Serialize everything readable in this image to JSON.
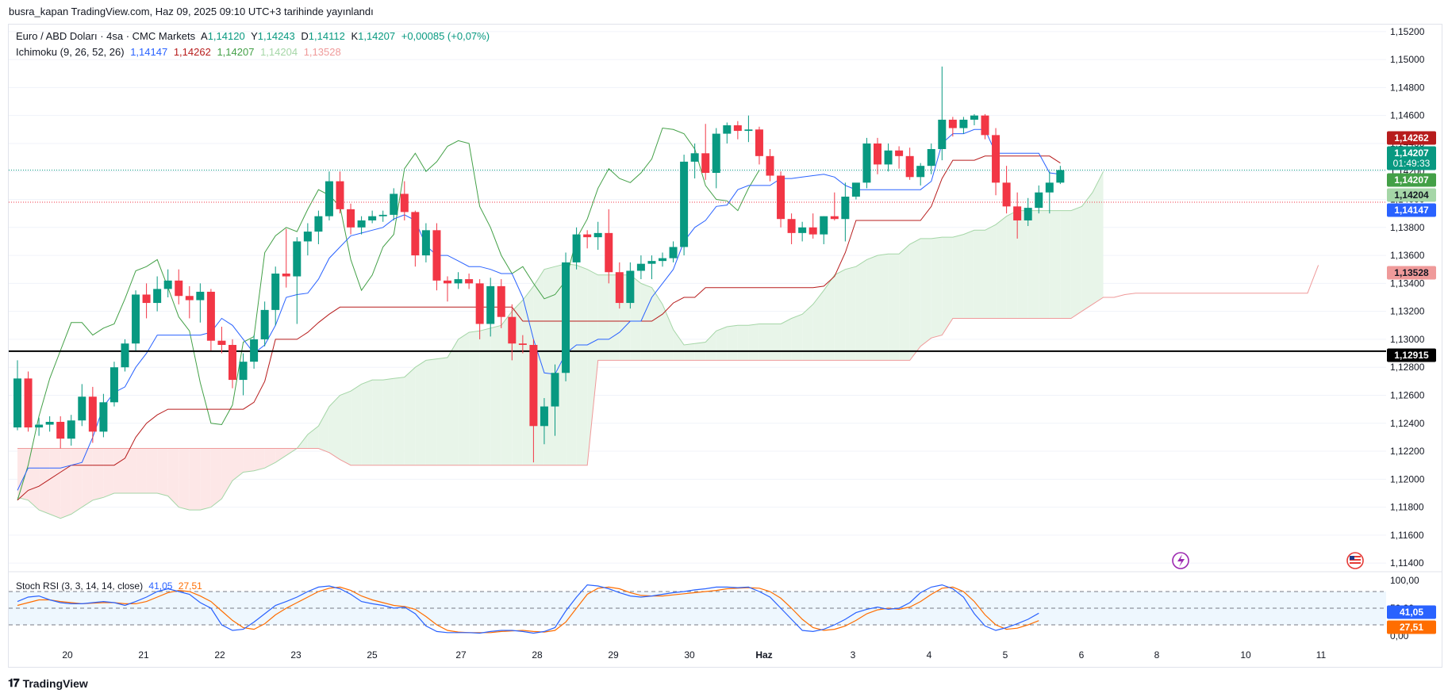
{
  "header": {
    "publish_line": "busra_kapan TradingView.com, Haz 09, 2025 09:10 UTC+3 tarihinde yayınlandı"
  },
  "legend": {
    "symbol": "Euro / ABD Doları · 4sa · CMC Markets",
    "open_label": "A",
    "open": "1,14120",
    "high_label": "Y",
    "high": "1,14243",
    "low_label": "D",
    "low": "1,14112",
    "close_label": "K",
    "close": "1,14207",
    "change": "+0,00085 (+0,07%)",
    "ichimoku_label": "Ichimoku (9, 26, 52, 26)",
    "ichimoku_values": [
      "1,14147",
      "1,14262",
      "1,14207",
      "1,14204",
      "1,13528"
    ],
    "stoch_label": "Stoch RSI (3, 3, 14, 14, close)",
    "stoch_k": "41,05",
    "stoch_d": "27,51"
  },
  "footer": {
    "brand": "TradingView"
  },
  "colors": {
    "up": "#089981",
    "down": "#f23645",
    "conversion": "#2962ff",
    "base": "#b71c1c",
    "lagging": "#43a047",
    "spanA": "#a5d6a7",
    "spanB": "#ef9a9a",
    "kumoBull": "#e8f5e9",
    "kumoBear": "#fde7e7",
    "stochK": "#2962ff",
    "stochD": "#ff6d00"
  },
  "chart_data": {
    "type": "candlestick",
    "symbol": "EUR/USD",
    "timeframe": "4sa",
    "y_range": [
      1.1135,
      1.1525
    ],
    "y_ticks": [
      "1,15200",
      "1,15000",
      "1,14800",
      "1,14600",
      "1,14400",
      "1,14200",
      "1,14000",
      "1,13800",
      "1,13600",
      "1,13400",
      "1,13200",
      "1,13000",
      "1,12800",
      "1,12600",
      "1,12400",
      "1,12200",
      "1,12000",
      "1,11800",
      "1,11600",
      "1,11400"
    ],
    "x_ticks": [
      "20",
      "21",
      "22",
      "23",
      "25",
      "27",
      "28",
      "29",
      "30",
      "Haz",
      "3",
      "4",
      "5",
      "6",
      "8",
      "10",
      "11"
    ],
    "horizontal_line": 1.12915,
    "price_labels": [
      {
        "text": "1,14262",
        "kind": "base"
      },
      {
        "text": "1,14207",
        "sub": "01:49:33",
        "kind": "last"
      },
      {
        "text": "1,14207",
        "kind": "lagging"
      },
      {
        "text": "1,14204",
        "kind": "spanA"
      },
      {
        "text": "1,14147",
        "kind": "conversion"
      },
      {
        "text": "1,13528",
        "kind": "spanB"
      },
      {
        "text": "1,12915",
        "kind": "hline"
      }
    ],
    "candles": [
      [
        1.1237,
        1.1285,
        1.1235,
        1.1272
      ],
      [
        1.1272,
        1.1277,
        1.1234,
        1.1237
      ],
      [
        1.1237,
        1.1244,
        1.1231,
        1.1239
      ],
      [
        1.1239,
        1.1245,
        1.1234,
        1.1241
      ],
      [
        1.1241,
        1.1245,
        1.1222,
        1.1229
      ],
      [
        1.1229,
        1.1246,
        1.1224,
        1.1242
      ],
      [
        1.1242,
        1.1268,
        1.1238,
        1.1259
      ],
      [
        1.1259,
        1.1266,
        1.1226,
        1.1234
      ],
      [
        1.1234,
        1.1261,
        1.123,
        1.1255
      ],
      [
        1.1255,
        1.1284,
        1.1252,
        1.128
      ],
      [
        1.128,
        1.13,
        1.1277,
        1.1297
      ],
      [
        1.1297,
        1.1335,
        1.1292,
        1.1332
      ],
      [
        1.1332,
        1.134,
        1.1315,
        1.1326
      ],
      [
        1.1326,
        1.1345,
        1.132,
        1.1336
      ],
      [
        1.1336,
        1.135,
        1.133,
        1.1342
      ],
      [
        1.1342,
        1.135,
        1.1325,
        1.1331
      ],
      [
        1.1331,
        1.1338,
        1.1315,
        1.1328
      ],
      [
        1.1328,
        1.134,
        1.1312,
        1.1334
      ],
      [
        1.1334,
        1.1336,
        1.1292,
        1.1299
      ],
      [
        1.1299,
        1.1309,
        1.129,
        1.1296
      ],
      [
        1.1296,
        1.13,
        1.1265,
        1.1271
      ],
      [
        1.1271,
        1.129,
        1.126,
        1.1284
      ],
      [
        1.1284,
        1.1303,
        1.1279,
        1.13
      ],
      [
        1.13,
        1.1327,
        1.1295,
        1.1321
      ],
      [
        1.1321,
        1.1352,
        1.131,
        1.1347
      ],
      [
        1.1347,
        1.1379,
        1.1337,
        1.1345
      ],
      [
        1.1345,
        1.1373,
        1.1311,
        1.137
      ],
      [
        1.137,
        1.1383,
        1.136,
        1.1377
      ],
      [
        1.1377,
        1.1392,
        1.1368,
        1.1388
      ],
      [
        1.1388,
        1.142,
        1.1385,
        1.1413
      ],
      [
        1.1413,
        1.142,
        1.139,
        1.1393
      ],
      [
        1.1393,
        1.1397,
        1.1375,
        1.138
      ],
      [
        1.138,
        1.1388,
        1.1375,
        1.1385
      ],
      [
        1.1385,
        1.1392,
        1.1383,
        1.1388
      ],
      [
        1.1388,
        1.1392,
        1.1384,
        1.1389
      ],
      [
        1.1389,
        1.1408,
        1.1385,
        1.1404
      ],
      [
        1.1404,
        1.1413,
        1.1385,
        1.1391
      ],
      [
        1.1391,
        1.1392,
        1.1352,
        1.136
      ],
      [
        1.136,
        1.1383,
        1.1355,
        1.1378
      ],
      [
        1.1378,
        1.1383,
        1.1335,
        1.1342
      ],
      [
        1.1342,
        1.1345,
        1.1327,
        1.134
      ],
      [
        1.134,
        1.1348,
        1.1336,
        1.1343
      ],
      [
        1.1343,
        1.1347,
        1.1336,
        1.134
      ],
      [
        1.134,
        1.1343,
        1.13,
        1.1311
      ],
      [
        1.1311,
        1.1344,
        1.1302,
        1.1338
      ],
      [
        1.1338,
        1.1343,
        1.1308,
        1.1316
      ],
      [
        1.1316,
        1.1325,
        1.1285,
        1.1297
      ],
      [
        1.1297,
        1.1303,
        1.129,
        1.1296
      ],
      [
        1.1296,
        1.13,
        1.1212,
        1.1238
      ],
      [
        1.1238,
        1.1258,
        1.1225,
        1.1252
      ],
      [
        1.1252,
        1.1282,
        1.1231,
        1.1276
      ],
      [
        1.1276,
        1.1362,
        1.127,
        1.1355
      ],
      [
        1.1355,
        1.138,
        1.135,
        1.1375
      ],
      [
        1.1375,
        1.1378,
        1.1365,
        1.1373
      ],
      [
        1.1373,
        1.1384,
        1.1364,
        1.1376
      ],
      [
        1.1376,
        1.1393,
        1.134,
        1.1348
      ],
      [
        1.1348,
        1.1355,
        1.1322,
        1.1326
      ],
      [
        1.1326,
        1.1355,
        1.1322,
        1.1349
      ],
      [
        1.1349,
        1.136,
        1.1343,
        1.1354
      ],
      [
        1.1354,
        1.136,
        1.1343,
        1.1356
      ],
      [
        1.1356,
        1.1362,
        1.1352,
        1.1358
      ],
      [
        1.1358,
        1.137,
        1.1355,
        1.1366
      ],
      [
        1.1366,
        1.1432,
        1.136,
        1.1427
      ],
      [
        1.1427,
        1.144,
        1.1415,
        1.1433
      ],
      [
        1.1433,
        1.1454,
        1.1414,
        1.1419
      ],
      [
        1.1419,
        1.1451,
        1.1408,
        1.1447
      ],
      [
        1.1447,
        1.1455,
        1.144,
        1.1453
      ],
      [
        1.1453,
        1.1456,
        1.1443,
        1.1449
      ],
      [
        1.1449,
        1.146,
        1.1441,
        1.145
      ],
      [
        1.145,
        1.1452,
        1.1425,
        1.1431
      ],
      [
        1.1431,
        1.1436,
        1.1413,
        1.1417
      ],
      [
        1.1417,
        1.142,
        1.138,
        1.1386
      ],
      [
        1.1386,
        1.139,
        1.1368,
        1.1376
      ],
      [
        1.1376,
        1.1384,
        1.137,
        1.138
      ],
      [
        1.138,
        1.139,
        1.1372,
        1.1375
      ],
      [
        1.1375,
        1.1388,
        1.1368,
        1.1388
      ],
      [
        1.1388,
        1.1405,
        1.1385,
        1.1386
      ],
      [
        1.1386,
        1.1412,
        1.137,
        1.1402
      ],
      [
        1.1402,
        1.141,
        1.14,
        1.1412
      ],
      [
        1.1412,
        1.1444,
        1.1408,
        1.144
      ],
      [
        1.144,
        1.1444,
        1.1418,
        1.1425
      ],
      [
        1.1425,
        1.144,
        1.142,
        1.1435
      ],
      [
        1.1435,
        1.1438,
        1.1422,
        1.1431
      ],
      [
        1.1431,
        1.1437,
        1.1414,
        1.1416
      ],
      [
        1.1416,
        1.1426,
        1.141,
        1.1424
      ],
      [
        1.1424,
        1.144,
        1.1418,
        1.1436
      ],
      [
        1.1436,
        1.1495,
        1.1428,
        1.1457
      ],
      [
        1.1457,
        1.1459,
        1.1445,
        1.1451
      ],
      [
        1.1451,
        1.1459,
        1.1447,
        1.1457
      ],
      [
        1.1457,
        1.1461,
        1.1453,
        1.146
      ],
      [
        1.146,
        1.1461,
        1.1443,
        1.1446
      ],
      [
        1.1446,
        1.1451,
        1.1403,
        1.1412
      ],
      [
        1.1412,
        1.1424,
        1.139,
        1.1395
      ],
      [
        1.1395,
        1.1405,
        1.1372,
        1.1385
      ],
      [
        1.1385,
        1.1401,
        1.1381,
        1.1394
      ],
      [
        1.1394,
        1.141,
        1.139,
        1.1405
      ],
      [
        1.1405,
        1.142,
        1.139,
        1.1412
      ],
      [
        1.1412,
        1.1424,
        1.1411,
        1.1421
      ]
    ],
    "tenkan_sen": [
      1.1192,
      1.1208,
      1.1208,
      1.1208,
      1.1208,
      1.121,
      1.1212,
      1.123,
      1.1252,
      1.1262,
      1.1266,
      1.128,
      1.129,
      1.1303,
      1.1303,
      1.1303,
      1.1303,
      1.1303,
      1.1305,
      1.1315,
      1.131,
      1.13,
      1.129,
      1.1296,
      1.131,
      1.133,
      1.1332,
      1.1333,
      1.1343,
      1.1358,
      1.1366,
      1.1374,
      1.1376,
      1.1378,
      1.138,
      1.1386,
      1.1389,
      1.1385,
      1.1367,
      1.136,
      1.136,
      1.1356,
      1.1352,
      1.1352,
      1.135,
      1.1347,
      1.1347,
      1.133,
      1.13,
      1.1276,
      1.1275,
      1.129,
      1.1296,
      1.1296,
      1.13,
      1.13,
      1.1305,
      1.1313,
      1.1313,
      1.133,
      1.134,
      1.135,
      1.137,
      1.138,
      1.1385,
      1.1395,
      1.1396,
      1.1407,
      1.141,
      1.141,
      1.141,
      1.1415,
      1.1415,
      1.1416,
      1.1417,
      1.1418,
      1.1416,
      1.141,
      1.1407,
      1.1407,
      1.1407,
      1.1407,
      1.1407,
      1.1407,
      1.1407,
      1.1413,
      1.144,
      1.1447,
      1.1447,
      1.145,
      1.145,
      1.1433,
      1.1433,
      1.1433,
      1.1433,
      1.1433,
      1.1419,
      1.1418
    ],
    "kijun_sen": [
      1.1185,
      1.1192,
      1.1195,
      1.12,
      1.1205,
      1.121,
      1.121,
      1.121,
      1.121,
      1.121,
      1.1215,
      1.123,
      1.124,
      1.1246,
      1.125,
      1.125,
      1.125,
      1.125,
      1.125,
      1.125,
      1.125,
      1.125,
      1.1255,
      1.127,
      1.13,
      1.13,
      1.13,
      1.1305,
      1.1312,
      1.1318,
      1.1323,
      1.1323,
      1.1323,
      1.1323,
      1.1323,
      1.1323,
      1.1323,
      1.1323,
      1.1323,
      1.1323,
      1.1323,
      1.1323,
      1.1323,
      1.1323,
      1.1323,
      1.1323,
      1.1323,
      1.1313,
      1.1313,
      1.1313,
      1.1313,
      1.1313,
      1.1313,
      1.1313,
      1.1313,
      1.1313,
      1.1313,
      1.1313,
      1.1313,
      1.1313,
      1.1318,
      1.1326,
      1.133,
      1.133,
      1.1337,
      1.1337,
      1.1337,
      1.1337,
      1.1337,
      1.1337,
      1.1337,
      1.1337,
      1.1337,
      1.1337,
      1.1337,
      1.1338,
      1.1345,
      1.1362,
      1.1385,
      1.1385,
      1.1385,
      1.1385,
      1.1385,
      1.1385,
      1.1385,
      1.1395,
      1.1415,
      1.1428,
      1.1428,
      1.1428,
      1.1431,
      1.1431,
      1.1431,
      1.1431,
      1.1431,
      1.1431,
      1.1431,
      1.1426
    ],
    "chikou_span": [
      1.1185,
      1.121,
      1.1245,
      1.1272,
      1.1292,
      1.1312,
      1.1312,
      1.1303,
      1.1308,
      1.1311,
      1.1329,
      1.1349,
      1.1352,
      1.1357,
      1.1337,
      1.1316,
      1.1306,
      1.1269,
      1.124,
      1.1239,
      1.1253,
      1.1298,
      1.1302,
      1.1362,
      1.1374,
      1.138,
      1.1377,
      1.1393,
      1.1407,
      1.1403,
      1.1395,
      1.1357,
      1.1335,
      1.1346,
      1.1366,
      1.1375,
      1.1422,
      1.1433,
      1.142,
      1.1427,
      1.1438,
      1.1442,
      1.144,
      1.1395,
      1.138,
      1.136,
      1.1347,
      1.1352,
      1.134,
      1.1329,
      1.1332,
      1.1342,
      1.1372,
      1.1386,
      1.1408,
      1.1422,
      1.1415,
      1.1412,
      1.1419,
      1.1429,
      1.1451,
      1.145,
      1.1447,
      1.1436,
      1.141,
      1.14,
      1.1399,
      1.1392,
      1.1408,
      1.1421
    ],
    "senkou_span_a": [
      1.1187,
      1.1185,
      1.1178,
      1.1175,
      1.1172,
      1.1175,
      1.118,
      1.1185,
      1.1187,
      1.119,
      1.119,
      1.119,
      1.119,
      1.119,
      1.1188,
      1.118,
      1.1178,
      1.1178,
      1.118,
      1.1186,
      1.1199,
      1.1205,
      1.1206,
      1.1208,
      1.1212,
      1.1217,
      1.1222,
      1.1232,
      1.1238,
      1.1252,
      1.126,
      1.1263,
      1.1268,
      1.1271,
      1.1271,
      1.1272,
      1.1273,
      1.128,
      1.1285,
      1.1286,
      1.1287,
      1.13,
      1.1305,
      1.1306,
      1.1308,
      1.131,
      1.132,
      1.1328,
      1.1338,
      1.135,
      1.1352,
      1.1354,
      1.1353,
      1.135,
      1.1346,
      1.1346,
      1.1346,
      1.1346,
      1.134,
      1.1337,
      1.1325,
      1.1307,
      1.1296,
      1.1297,
      1.1298,
      1.1306,
      1.1309,
      1.131,
      1.131,
      1.1311,
      1.1311,
      1.1311,
      1.1315,
      1.1318,
      1.1325,
      1.1335,
      1.1346,
      1.135,
      1.1352,
      1.1357,
      1.136,
      1.1361,
      1.1361,
      1.1368,
      1.1372,
      1.1372,
      1.1373,
      1.1373,
      1.1375,
      1.1378,
      1.1378,
      1.1382,
      1.1388,
      1.1392,
      1.1392,
      1.1392,
      1.1392,
      1.1392,
      1.1392,
      1.1395,
      1.1405,
      1.142
    ],
    "senkou_span_b": [
      1.1222,
      1.1222,
      1.1222,
      1.1222,
      1.1222,
      1.1222,
      1.1222,
      1.1222,
      1.1222,
      1.1222,
      1.1222,
      1.1222,
      1.1222,
      1.1222,
      1.1222,
      1.1222,
      1.1222,
      1.1222,
      1.1222,
      1.1222,
      1.1222,
      1.1222,
      1.1222,
      1.1222,
      1.1222,
      1.1222,
      1.1222,
      1.1222,
      1.1222,
      1.1219,
      1.1214,
      1.121,
      1.121,
      1.121,
      1.121,
      1.121,
      1.121,
      1.121,
      1.121,
      1.121,
      1.121,
      1.121,
      1.121,
      1.121,
      1.121,
      1.121,
      1.121,
      1.121,
      1.121,
      1.121,
      1.121,
      1.121,
      1.121,
      1.121,
      1.1285,
      1.1285,
      1.1285,
      1.1285,
      1.1285,
      1.1285,
      1.1285,
      1.1285,
      1.1285,
      1.1285,
      1.1285,
      1.1285,
      1.1285,
      1.1285,
      1.1285,
      1.1285,
      1.1285,
      1.1285,
      1.1285,
      1.1285,
      1.1285,
      1.1285,
      1.1285,
      1.1285,
      1.1285,
      1.1285,
      1.1285,
      1.1285,
      1.1285,
      1.1285,
      1.1295,
      1.1301,
      1.1303,
      1.1315,
      1.1315,
      1.1315,
      1.1315,
      1.1315,
      1.1315,
      1.1315,
      1.1315,
      1.1315,
      1.1315,
      1.1315,
      1.1315,
      1.132,
      1.1325,
      1.133,
      1.133,
      1.1332,
      1.1333,
      1.1333,
      1.1333,
      1.1333,
      1.1333,
      1.1333,
      1.1333,
      1.1333,
      1.1333,
      1.1333,
      1.1333,
      1.1333,
      1.1333,
      1.1333,
      1.1333,
      1.1333,
      1.1333,
      1.1353
    ]
  },
  "stoch_rsi": {
    "range": [
      0,
      100
    ],
    "ticks": [
      "100,00",
      "50,00",
      "0,00"
    ],
    "bands": [
      80,
      50,
      20
    ],
    "k": [
      62,
      70,
      72,
      65,
      60,
      58,
      58,
      60,
      62,
      60,
      55,
      62,
      70,
      80,
      85,
      80,
      75,
      60,
      50,
      20,
      10,
      12,
      25,
      40,
      55,
      62,
      70,
      80,
      88,
      90,
      85,
      75,
      62,
      58,
      55,
      50,
      52,
      40,
      18,
      8,
      6,
      6,
      6,
      5,
      8,
      10,
      10,
      8,
      5,
      8,
      15,
      45,
      70,
      92,
      90,
      85,
      78,
      72,
      70,
      72,
      75,
      78,
      80,
      83,
      85,
      88,
      88,
      87,
      88,
      80,
      70,
      50,
      30,
      10,
      8,
      12,
      20,
      30,
      42,
      48,
      52,
      48,
      50,
      60,
      78,
      88,
      92,
      85,
      70,
      40,
      18,
      10,
      15,
      22,
      30,
      41
    ],
    "d": [
      55,
      60,
      65,
      65,
      62,
      60,
      58,
      59,
      60,
      60,
      58,
      58,
      62,
      70,
      78,
      82,
      80,
      72,
      62,
      45,
      28,
      15,
      12,
      22,
      38,
      50,
      60,
      70,
      80,
      86,
      88,
      82,
      72,
      65,
      60,
      55,
      53,
      48,
      35,
      20,
      10,
      7,
      6,
      6,
      6,
      8,
      9,
      10,
      8,
      7,
      10,
      25,
      50,
      75,
      86,
      88,
      85,
      78,
      73,
      72,
      72,
      74,
      76,
      78,
      80,
      82,
      85,
      86,
      87,
      86,
      80,
      68,
      50,
      30,
      15,
      10,
      12,
      18,
      28,
      40,
      47,
      50,
      48,
      52,
      62,
      75,
      86,
      88,
      80,
      62,
      38,
      20,
      12,
      14,
      20,
      27.51
    ]
  }
}
